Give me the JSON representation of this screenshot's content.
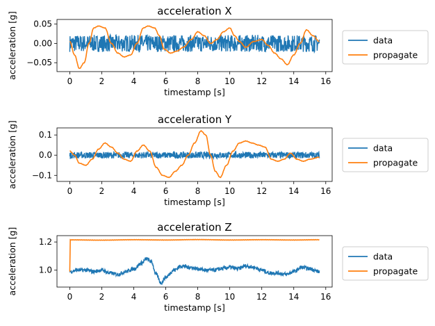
{
  "colors": {
    "data": "#1f77b4",
    "propagate": "#ff7f0e"
  },
  "chart_data": [
    {
      "type": "line",
      "title": "acceleration X",
      "xlabel": "timestamp [s]",
      "ylabel": "acceleration [g]",
      "xlim": [
        -0.8,
        16.4
      ],
      "ylim": [
        -0.073,
        0.062
      ],
      "xticks": [
        0,
        2,
        4,
        6,
        8,
        10,
        12,
        14,
        16
      ],
      "yticks": [
        -0.05,
        0.0,
        0.05
      ],
      "ytick_labels": [
        "−0.05",
        "0.00",
        "0.05"
      ],
      "legend": {
        "placement": "outside-right",
        "entries": [
          "data",
          "propagate"
        ]
      },
      "series": [
        {
          "name": "data",
          "noise_amplitude": 0.022,
          "points": [
            [
              0,
              0
            ],
            [
              15.6,
              0
            ]
          ]
        },
        {
          "name": "propagate",
          "points": [
            [
              0,
              0.005
            ],
            [
              0.3,
              -0.03
            ],
            [
              0.6,
              -0.065
            ],
            [
              0.9,
              -0.05
            ],
            [
              1.2,
              0.0
            ],
            [
              1.5,
              0.04
            ],
            [
              1.8,
              0.045
            ],
            [
              2.2,
              0.04
            ],
            [
              2.6,
              0.0
            ],
            [
              3.0,
              -0.025
            ],
            [
              3.4,
              -0.035
            ],
            [
              3.8,
              -0.03
            ],
            [
              4.2,
              0.0
            ],
            [
              4.6,
              0.04
            ],
            [
              4.9,
              0.045
            ],
            [
              5.3,
              0.04
            ],
            [
              5.6,
              0.02
            ],
            [
              5.9,
              -0.015
            ],
            [
              6.3,
              -0.025
            ],
            [
              6.7,
              -0.02
            ],
            [
              7.1,
              -0.01
            ],
            [
              7.6,
              0.01
            ],
            [
              8.0,
              0.03
            ],
            [
              8.4,
              0.02
            ],
            [
              8.8,
              0.0
            ],
            [
              9.2,
              0.01
            ],
            [
              9.6,
              0.03
            ],
            [
              10.0,
              0.04
            ],
            [
              10.3,
              0.02
            ],
            [
              10.6,
              0.005
            ],
            [
              11.0,
              -0.01
            ],
            [
              11.5,
              0.005
            ],
            [
              12.0,
              0.01
            ],
            [
              12.4,
              -0.005
            ],
            [
              12.8,
              -0.025
            ],
            [
              13.2,
              -0.04
            ],
            [
              13.6,
              -0.055
            ],
            [
              14.0,
              -0.03
            ],
            [
              14.4,
              0.0
            ],
            [
              14.8,
              0.035
            ],
            [
              15.2,
              0.02
            ],
            [
              15.6,
              0.005
            ]
          ]
        }
      ]
    },
    {
      "type": "line",
      "title": "acceleration Y",
      "xlabel": "timestamp [s]",
      "ylabel": "acceleration [g]",
      "xlim": [
        -0.8,
        16.4
      ],
      "ylim": [
        -0.13,
        0.135
      ],
      "xticks": [
        0,
        2,
        4,
        6,
        8,
        10,
        12,
        14,
        16
      ],
      "yticks": [
        -0.1,
        0.0,
        0.1
      ],
      "ytick_labels": [
        "−0.1",
        "0.0",
        "0.1"
      ],
      "legend": {
        "placement": "outside-right",
        "entries": [
          "data",
          "propagate"
        ]
      },
      "series": [
        {
          "name": "data",
          "noise_amplitude": 0.016,
          "points": [
            [
              0,
              0.0
            ],
            [
              15.6,
              0.0
            ]
          ]
        },
        {
          "name": "propagate",
          "points": [
            [
              0,
              0.02
            ],
            [
              0.3,
              0.0
            ],
            [
              0.6,
              -0.04
            ],
            [
              1.0,
              -0.05
            ],
            [
              1.4,
              -0.02
            ],
            [
              1.8,
              0.03
            ],
            [
              2.2,
              0.06
            ],
            [
              2.6,
              0.04
            ],
            [
              3.0,
              0.01
            ],
            [
              3.4,
              -0.02
            ],
            [
              3.8,
              -0.03
            ],
            [
              4.2,
              0.02
            ],
            [
              4.6,
              0.05
            ],
            [
              5.0,
              0.02
            ],
            [
              5.4,
              -0.06
            ],
            [
              5.8,
              -0.1
            ],
            [
              6.2,
              -0.11
            ],
            [
              6.6,
              -0.08
            ],
            [
              7.0,
              -0.05
            ],
            [
              7.4,
              0.0
            ],
            [
              7.8,
              0.06
            ],
            [
              8.2,
              0.12
            ],
            [
              8.5,
              0.1
            ],
            [
              8.8,
              0.0
            ],
            [
              9.1,
              -0.08
            ],
            [
              9.4,
              -0.11
            ],
            [
              9.8,
              -0.05
            ],
            [
              10.2,
              0.02
            ],
            [
              10.6,
              0.06
            ],
            [
              11.0,
              0.07
            ],
            [
              11.4,
              0.06
            ],
            [
              11.8,
              0.05
            ],
            [
              12.2,
              0.04
            ],
            [
              12.6,
              -0.02
            ],
            [
              13.0,
              -0.03
            ],
            [
              13.4,
              -0.02
            ],
            [
              13.8,
              0.01
            ],
            [
              14.2,
              -0.02
            ],
            [
              14.6,
              -0.03
            ],
            [
              15.0,
              -0.02
            ],
            [
              15.6,
              -0.01
            ]
          ]
        }
      ]
    },
    {
      "type": "line",
      "title": "acceleration Z",
      "xlabel": "timestamp [s]",
      "ylabel": "acceleration [g]",
      "xlim": [
        -0.8,
        16.4
      ],
      "ylim": [
        0.88,
        1.245
      ],
      "xticks": [
        0,
        2,
        4,
        6,
        8,
        10,
        12,
        14,
        16
      ],
      "yticks": [
        1.0,
        1.2
      ],
      "ytick_labels": [
        "1.0",
        "1.2"
      ],
      "legend": {
        "placement": "outside-right",
        "entries": [
          "data",
          "propagate"
        ]
      },
      "series": [
        {
          "name": "data",
          "noise_amplitude": 0.014,
          "points": [
            [
              0,
              0.99
            ],
            [
              0.5,
              1.0
            ],
            [
              1.0,
              1.0
            ],
            [
              1.5,
              0.99
            ],
            [
              2.0,
              1.0
            ],
            [
              2.5,
              0.98
            ],
            [
              3.0,
              0.97
            ],
            [
              3.5,
              0.99
            ],
            [
              4.0,
              1.01
            ],
            [
              4.5,
              1.05
            ],
            [
              4.8,
              1.08
            ],
            [
              5.1,
              1.06
            ],
            [
              5.4,
              0.97
            ],
            [
              5.7,
              0.91
            ],
            [
              6.0,
              0.95
            ],
            [
              6.5,
              1.0
            ],
            [
              7.0,
              1.03
            ],
            [
              7.5,
              1.02
            ],
            [
              8.0,
              1.01
            ],
            [
              8.5,
              1.0
            ],
            [
              9.0,
              1.0
            ],
            [
              9.5,
              1.01
            ],
            [
              10.0,
              1.02
            ],
            [
              10.5,
              1.01
            ],
            [
              11.0,
              1.03
            ],
            [
              11.5,
              1.02
            ],
            [
              12.0,
              1.0
            ],
            [
              12.5,
              0.98
            ],
            [
              13.0,
              0.98
            ],
            [
              13.5,
              0.97
            ],
            [
              14.0,
              0.99
            ],
            [
              14.5,
              1.02
            ],
            [
              15.0,
              1.01
            ],
            [
              15.6,
              0.99
            ]
          ]
        },
        {
          "name": "propagate",
          "points": [
            [
              0,
              0.99
            ],
            [
              0.03,
              1.215
            ],
            [
              2,
              1.213
            ],
            [
              4,
              1.216
            ],
            [
              6,
              1.214
            ],
            [
              8,
              1.217
            ],
            [
              10,
              1.214
            ],
            [
              12,
              1.216
            ],
            [
              14,
              1.214
            ],
            [
              15.6,
              1.216
            ]
          ]
        }
      ]
    }
  ]
}
